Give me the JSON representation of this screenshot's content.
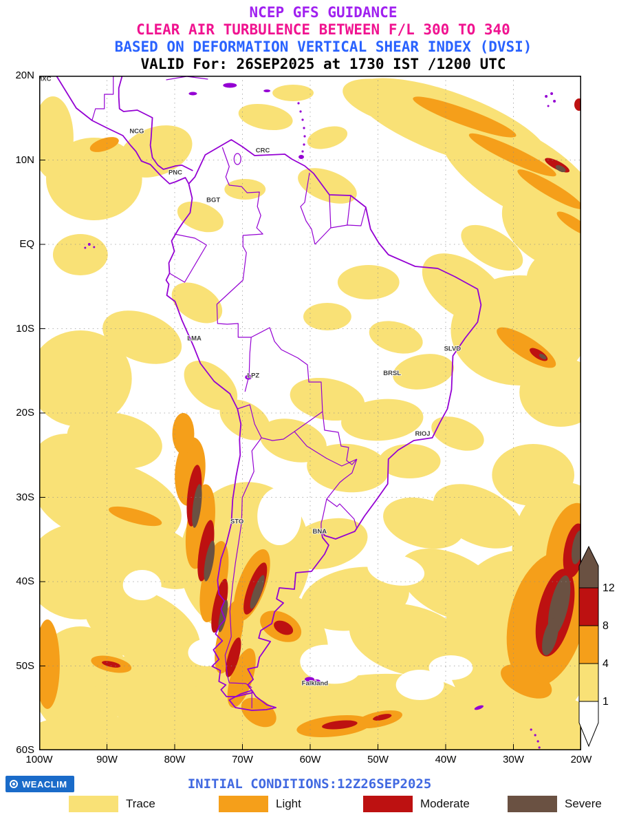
{
  "header": {
    "line1": "NCEP GFS GUIDANCE",
    "line2": "CLEAR AIR TURBULENCE BETWEEN F/L 300 TO 340",
    "line3": "BASED ON DEFORMATION VERTICAL SHEAR INDEX (DVSI)",
    "line4": "VALID For: 26SEP2025 at 1730 IST /1200 UTC"
  },
  "palette": {
    "trace": "#f9e176",
    "light": "#f59f1a",
    "moderate": "#bd1111",
    "severe": "#6a5142",
    "none": "#ffffff",
    "boundaries": "#9400d3"
  },
  "map": {
    "lon_ticks": [
      {
        "label": "100W",
        "lon": -100
      },
      {
        "label": "90W",
        "lon": -90
      },
      {
        "label": "80W",
        "lon": -80
      },
      {
        "label": "70W",
        "lon": -70
      },
      {
        "label": "60W",
        "lon": -60
      },
      {
        "label": "50W",
        "lon": -50
      },
      {
        "label": "40W",
        "lon": -40
      },
      {
        "label": "30W",
        "lon": -30
      },
      {
        "label": "20W",
        "lon": -20
      }
    ],
    "lat_ticks": [
      {
        "label": "20N",
        "lat": 20
      },
      {
        "label": "10N",
        "lat": 10
      },
      {
        "label": "EQ",
        "lat": 0
      },
      {
        "label": "10S",
        "lat": -10
      },
      {
        "label": "20S",
        "lat": -20
      },
      {
        "label": "30S",
        "lat": -30
      },
      {
        "label": "40S",
        "lat": -40
      },
      {
        "label": "50S",
        "lat": -50
      },
      {
        "label": "60S",
        "lat": -60
      }
    ],
    "cities": [
      {
        "label": "MXC",
        "lon": -99.3,
        "lat": 19.4
      },
      {
        "label": "NCG",
        "lon": -85.6,
        "lat": 13.2
      },
      {
        "label": "CRC",
        "lon": -67.0,
        "lat": 10.9
      },
      {
        "label": "PNC",
        "lon": -79.9,
        "lat": 8.3
      },
      {
        "label": "BGT",
        "lon": -74.3,
        "lat": 5.0
      },
      {
        "label": "LMA",
        "lon": -77.1,
        "lat": -11.4
      },
      {
        "label": "LPZ",
        "lon": -68.4,
        "lat": -15.8
      },
      {
        "label": "BRSL",
        "lon": -47.9,
        "lat": -15.5
      },
      {
        "label": "SLVD",
        "lon": -39.0,
        "lat": -12.6
      },
      {
        "label": "RIOJ",
        "lon": -43.4,
        "lat": -22.7
      },
      {
        "label": "STO",
        "lon": -70.8,
        "lat": -33.1
      },
      {
        "label": "BNA",
        "lon": -58.6,
        "lat": -34.3
      },
      {
        "label": "Falkland",
        "lon": -59.3,
        "lat": -52.3
      }
    ]
  },
  "colorbar": {
    "ticks": [
      "12",
      "8",
      "4",
      "1"
    ]
  },
  "legend": {
    "items": [
      {
        "label": "Trace",
        "key": "trace"
      },
      {
        "label": "Light",
        "key": "light"
      },
      {
        "label": "Moderate",
        "key": "moderate"
      },
      {
        "label": "Severe",
        "key": "severe"
      }
    ]
  },
  "footer": {
    "logo_text": "WEACLIM",
    "initial_conditions": "INITIAL CONDITIONS:12Z26SEP2025"
  }
}
